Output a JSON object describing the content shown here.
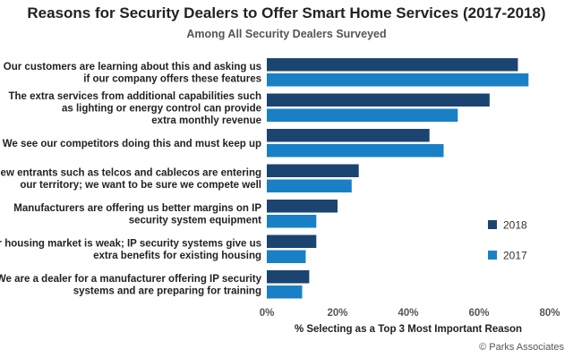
{
  "title": "Reasons for Security Dealers to Offer Smart Home Services (2017-2018)",
  "subtitle": "Among All Security Dealers Surveyed",
  "source": "© Parks Associates",
  "chart_data": {
    "type": "bar",
    "orientation": "horizontal",
    "categories": [
      [
        "Our customers are learning about this and asking us",
        "if our company offers these features"
      ],
      [
        "The extra services from additional capabilities such",
        "as lighting or energy control can provide",
        "extra monthly revenue"
      ],
      [
        "We see our competitors doing this and must keep up"
      ],
      [
        "New entrants such as telcos and cablecos are entering",
        "our territory; we want to be sure we compete well"
      ],
      [
        "Manufacturers are offering us better margins on IP",
        "security system equipment"
      ],
      [
        "Our housing market is weak; IP security systems give us",
        "extra benefits for existing housing"
      ],
      [
        "We are a dealer for a manufacturer offering IP security",
        "systems and are preparing for training"
      ]
    ],
    "series": [
      {
        "name": "2018",
        "color": "#1c4470",
        "values": [
          71,
          63,
          46,
          26,
          20,
          14,
          12
        ]
      },
      {
        "name": "2017",
        "color": "#1a80c6",
        "values": [
          74,
          54,
          50,
          24,
          14,
          11,
          10
        ]
      }
    ],
    "xlabel": "% Selecting as a Top 3 Most Important Reason",
    "xlim": [
      0,
      80
    ],
    "xticks": [
      "0%",
      "20%",
      "40%",
      "60%",
      "80%"
    ],
    "xtick_values": [
      0,
      20,
      40,
      60,
      80
    ],
    "grid": false,
    "legend_position": "right"
  }
}
